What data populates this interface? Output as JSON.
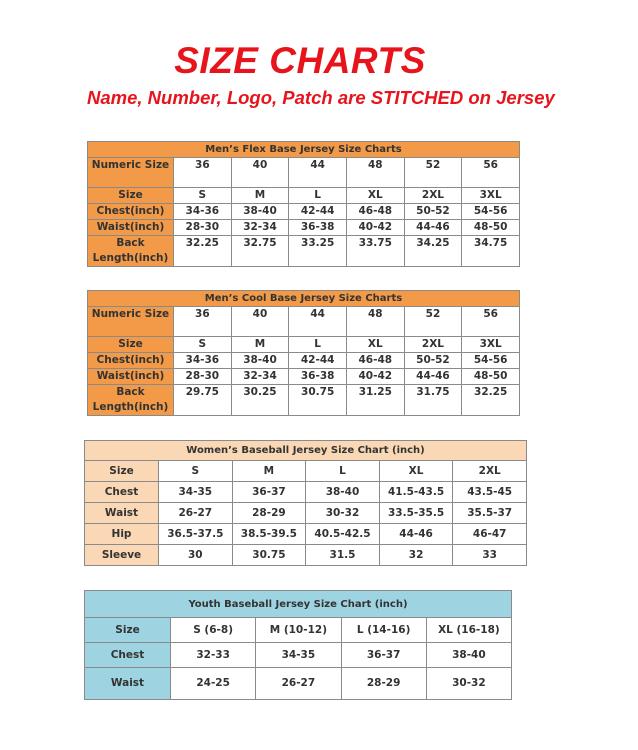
{
  "title": "SIZE CHARTS",
  "subtitle": "Name, Number, Logo, Patch are STITCHED on Jersey",
  "colors": {
    "title": "#e8141c",
    "mens_header": "#f29a48",
    "womens_header": "#fad7b5",
    "youth_header": "#9ed3e2"
  },
  "tables": [
    {
      "caption": "Men’s Flex Base Jersey Size Charts",
      "rows": [
        [
          "Numeric Size",
          "36",
          "40",
          "44",
          "48",
          "52",
          "56"
        ],
        [
          "Size",
          "S",
          "M",
          "L",
          "XL",
          "2XL",
          "3XL"
        ],
        [
          "Chest(inch)",
          "34-36",
          "38-40",
          "42-44",
          "46-48",
          "50-52",
          "54-56"
        ],
        [
          "Waist(inch)",
          "28-30",
          "32-34",
          "36-38",
          "40-42",
          "44-46",
          "48-50"
        ],
        [
          "Back Length(inch)",
          "32.25",
          "32.75",
          "33.25",
          "33.75",
          "34.25",
          "34.75"
        ]
      ]
    },
    {
      "caption": "Men’s Cool Base Jersey Size Charts",
      "rows": [
        [
          "Numeric Size",
          "36",
          "40",
          "44",
          "48",
          "52",
          "56"
        ],
        [
          "Size",
          "S",
          "M",
          "L",
          "XL",
          "2XL",
          "3XL"
        ],
        [
          "Chest(inch)",
          "34-36",
          "38-40",
          "42-44",
          "46-48",
          "50-52",
          "54-56"
        ],
        [
          "Waist(inch)",
          "28-30",
          "32-34",
          "36-38",
          "40-42",
          "44-46",
          "48-50"
        ],
        [
          "Back Length(inch)",
          "29.75",
          "30.25",
          "30.75",
          "31.25",
          "31.75",
          "32.25"
        ]
      ]
    },
    {
      "caption": "Women’s Baseball Jersey Size Chart (inch)",
      "rows": [
        [
          "Size",
          "S",
          "M",
          "L",
          "XL",
          "2XL"
        ],
        [
          "Chest",
          "34-35",
          "36-37",
          "38-40",
          "41.5-43.5",
          "43.5-45"
        ],
        [
          "Waist",
          "26-27",
          "28-29",
          "30-32",
          "33.5-35.5",
          "35.5-37"
        ],
        [
          "Hip",
          "36.5-37.5",
          "38.5-39.5",
          "40.5-42.5",
          "44-46",
          "46-47"
        ],
        [
          "Sleeve",
          "30",
          "30.75",
          "31.5",
          "32",
          "33"
        ]
      ]
    },
    {
      "caption": "Youth Baseball Jersey Size Chart (inch)",
      "rows": [
        [
          "Size",
          "S (6-8)",
          "M (10-12)",
          "L (14-16)",
          "XL (16-18)"
        ],
        [
          "Chest",
          "32-33",
          "34-35",
          "36-37",
          "38-40"
        ],
        [
          "Waist",
          "24-25",
          "26-27",
          "28-29",
          "30-32"
        ]
      ]
    }
  ]
}
